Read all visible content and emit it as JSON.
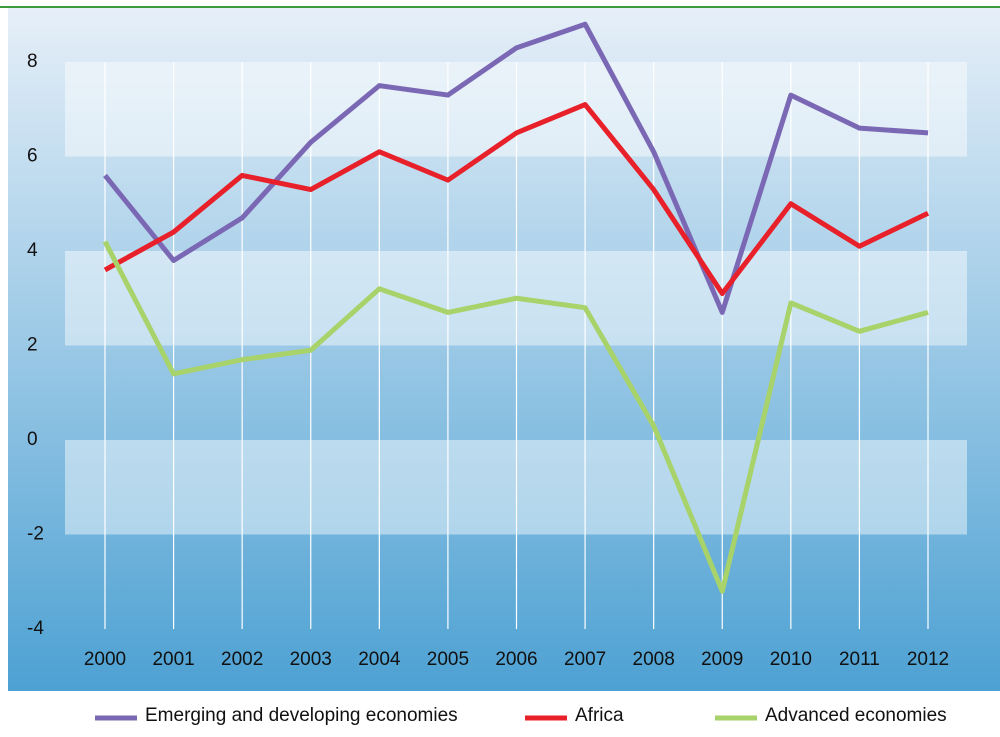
{
  "chart_data": {
    "type": "line",
    "categories": [
      "2000",
      "2001",
      "2002",
      "2003",
      "2004",
      "2005",
      "2006",
      "2007",
      "2008",
      "2009",
      "2010",
      "2011",
      "2012"
    ],
    "series": [
      {
        "name": "Emerging and developing economies",
        "color": "#7b68b5",
        "values": [
          5.6,
          3.8,
          4.7,
          6.3,
          7.5,
          7.3,
          8.3,
          8.8,
          6.1,
          2.7,
          7.3,
          6.6,
          6.5
        ]
      },
      {
        "name": "Africa",
        "color": "#e8202a",
        "values": [
          3.6,
          4.4,
          5.6,
          5.3,
          6.1,
          5.5,
          6.5,
          7.1,
          5.3,
          3.1,
          5.0,
          4.1,
          4.8
        ]
      },
      {
        "name": "Advanced economies",
        "color": "#a8d26a",
        "values": [
          4.2,
          1.4,
          1.7,
          1.9,
          3.2,
          2.7,
          3.0,
          2.8,
          0.3,
          -3.2,
          2.9,
          2.3,
          2.7
        ]
      }
    ],
    "ylim": [
      -4,
      8
    ],
    "yticks": [
      -4,
      -2,
      0,
      2,
      4,
      6,
      8
    ],
    "grid": true,
    "legend": "bottom"
  }
}
